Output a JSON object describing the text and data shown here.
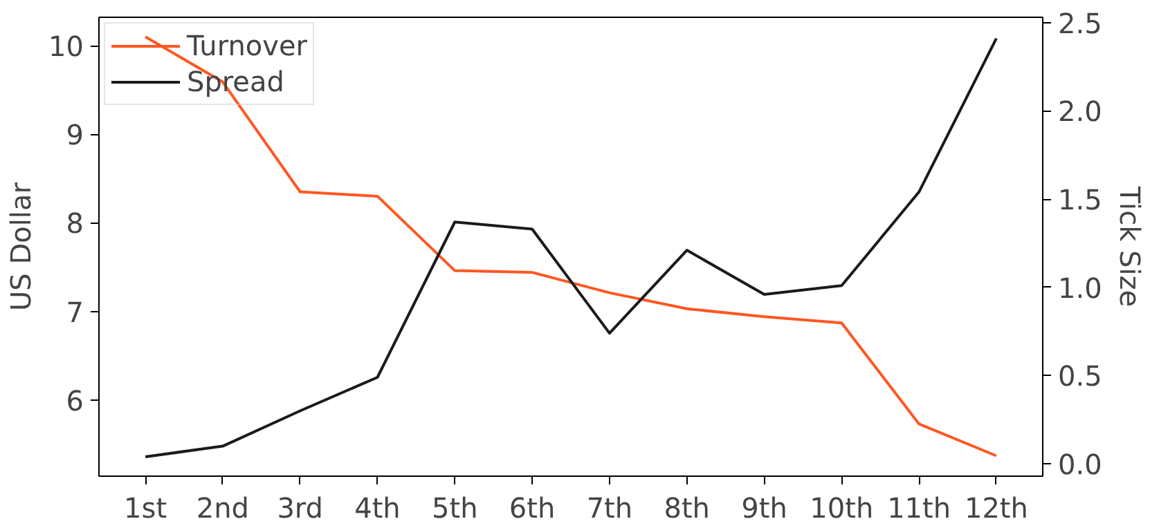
{
  "chart_data": {
    "type": "line",
    "ylabel": "US Dollar",
    "y2label": "Tick Size",
    "categories": [
      "1st",
      "2nd",
      "3rd",
      "4th",
      "5th",
      "6th",
      "7th",
      "8th",
      "9th",
      "10th",
      "11th",
      "12th"
    ],
    "series": [
      {
        "name": "Turnover",
        "color": "#ff5722",
        "values": [
          10.1,
          9.59,
          8.35,
          8.3,
          7.46,
          7.44,
          7.21,
          7.03,
          6.94,
          6.87,
          5.73,
          5.37
        ]
      },
      {
        "name": "Spread",
        "color": "#1a1a1a",
        "axis": "y2",
        "values": [
          0.04,
          0.1,
          0.3,
          0.49,
          1.37,
          1.33,
          0.74,
          1.21,
          0.96,
          1.01,
          1.54,
          2.41
        ]
      }
    ],
    "ylim": [
      5.14,
      10.32
    ],
    "yticks": [
      6,
      7,
      8,
      9,
      10
    ],
    "y2lim": [
      -0.07,
      2.53
    ],
    "y2ticks": [
      {
        "value": 0,
        "label": "0.0"
      },
      0.5,
      {
        "value": 1,
        "label": "1.0"
      },
      1.5,
      {
        "value": 2,
        "label": "2.0"
      },
      2.5
    ],
    "grid": false,
    "legend": "top left",
    "marker": "none",
    "line_style": "solid"
  }
}
